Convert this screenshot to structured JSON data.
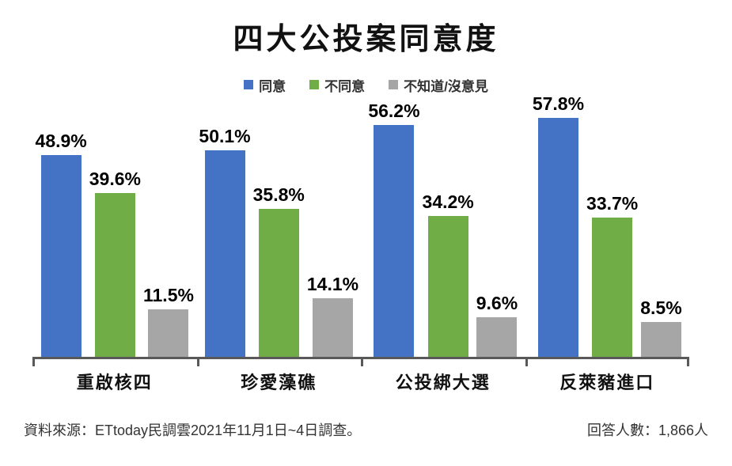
{
  "title": "四大公投案同意度",
  "legend": [
    {
      "label": "同意",
      "color": "#4472C4"
    },
    {
      "label": "不同意",
      "color": "#70AD47"
    },
    {
      "label": "不知道/沒意見",
      "color": "#A6A6A6"
    }
  ],
  "chart_data": {
    "type": "bar",
    "title": "四大公投案同意度",
    "categories": [
      "重啟核四",
      "珍愛藻礁",
      "公投綁大選",
      "反萊豬進口"
    ],
    "series": [
      {
        "name": "同意",
        "color": "#4472C4",
        "values": [
          48.9,
          50.1,
          56.2,
          57.8
        ]
      },
      {
        "name": "不同意",
        "color": "#70AD47",
        "values": [
          39.6,
          35.8,
          34.2,
          33.7
        ]
      },
      {
        "name": "不知道/沒意見",
        "color": "#A6A6A6",
        "values": [
          11.5,
          14.1,
          9.6,
          8.5
        ]
      }
    ],
    "value_suffix": "%",
    "ylim": [
      0,
      60
    ],
    "grid": false,
    "legend_position": "top",
    "axis_color": "#595959"
  },
  "footer": {
    "source": "資料來源：ETtoday民調雲2021年11月1日~4日調查。",
    "respondents": "回答人數：1,866人"
  }
}
